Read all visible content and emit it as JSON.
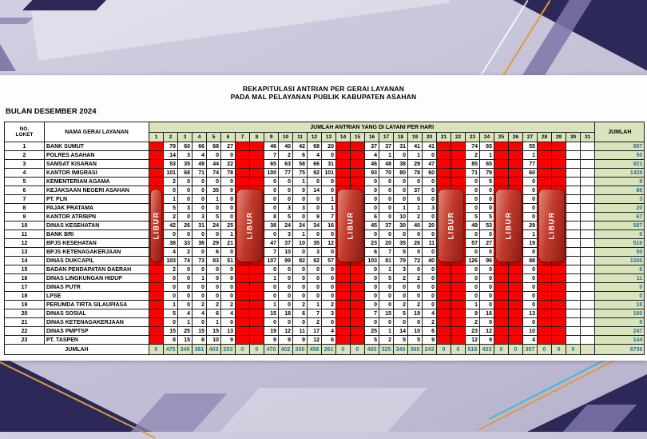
{
  "page": {
    "title_line1": "REKAPITULASI ANTRIAN PER GERAI LAYANAN",
    "title_line2": "PADA MAL PELAYANAN PUBLIK KABUPATEN ASAHAN",
    "period_label": "BULAN DESEMBER 2024"
  },
  "colors": {
    "libur_red": "#ff0000",
    "pill_red": "#c13a2c",
    "header_green": "#d8e4bc",
    "totals_text": "#2e7396",
    "wallpaper_navy": "#2c2857",
    "wallpaper_lavender": "#c6c2d8"
  },
  "table": {
    "headers": {
      "no_line1": "NO.",
      "no_line2": "LOKET",
      "name": "NAMA GERAI LAYANAN",
      "days_group": "JUMLAH ANTRIAN YANG DI LAYANI PER HARI",
      "total": "JUMLAH",
      "footer": "JUMLAH"
    },
    "day_numbers": [
      "1",
      "2",
      "3",
      "4",
      "5",
      "6",
      "7",
      "8",
      "9",
      "10",
      "11",
      "12",
      "13",
      "14",
      "15",
      "16",
      "17",
      "18",
      "19",
      "20",
      "21",
      "22",
      "23",
      "24",
      "25",
      "26",
      "27",
      "28",
      "29",
      "30",
      "31"
    ],
    "libur_days": [
      1,
      7,
      8,
      14,
      15,
      21,
      22,
      25,
      26,
      28,
      29
    ],
    "empty_days": [
      30,
      31
    ],
    "libur_label": "LIBUR",
    "libur_pills": [
      {
        "start": 1,
        "span": 1
      },
      {
        "start": 7,
        "span": 2
      },
      {
        "start": 14,
        "span": 2
      },
      {
        "start": 21,
        "span": 2
      },
      {
        "start": 25,
        "span": 2
      },
      {
        "start": 28,
        "span": 2
      }
    ],
    "rows": [
      {
        "no": "1",
        "name": "BANK SUMUT",
        "values": {
          "d2": 79,
          "d3": 60,
          "d4": 66,
          "d5": 68,
          "d6": 27,
          "d9": 46,
          "d10": 40,
          "d11": 42,
          "d12": 68,
          "d13": 20,
          "d16": 37,
          "d17": 37,
          "d18": 31,
          "d19": 41,
          "d20": 41,
          "d23": 74,
          "d24": 65,
          "d27": 55
        },
        "total": 897
      },
      {
        "no": "2",
        "name": "POLRES ASAHAN",
        "values": {
          "d2": 14,
          "d3": 3,
          "d4": 4,
          "d5": 0,
          "d6": 0,
          "d9": 7,
          "d10": 2,
          "d11": 6,
          "d12": 4,
          "d13": 0,
          "d16": 4,
          "d17": 1,
          "d18": 0,
          "d19": 1,
          "d20": 0,
          "d23": 2,
          "d24": 1,
          "d27": 1
        },
        "total": 50
      },
      {
        "no": "3",
        "name": "SAMSAT KISARAN",
        "values": {
          "d2": 53,
          "d3": 35,
          "d4": 49,
          "d5": 44,
          "d6": 22,
          "d9": 65,
          "d10": 63,
          "d11": 58,
          "d12": 66,
          "d13": 31,
          "d16": 46,
          "d17": 48,
          "d18": 38,
          "d19": 29,
          "d20": 47,
          "d23": 85,
          "d24": 65,
          "d27": 77
        },
        "total": 921
      },
      {
        "no": "4",
        "name": "KANTOR IMIGRASI",
        "values": {
          "d2": 101,
          "d3": 68,
          "d4": 71,
          "d5": 74,
          "d6": 78,
          "d9": 100,
          "d10": 77,
          "d11": 75,
          "d12": 92,
          "d13": 101,
          "d16": 93,
          "d17": 70,
          "d18": 80,
          "d19": 78,
          "d20": 60,
          "d23": 71,
          "d24": 79,
          "d27": 60
        },
        "total": 1428
      },
      {
        "no": "5",
        "name": "KEMENTERIAN AGAMA",
        "values": {
          "d2": 2,
          "d3": 0,
          "d4": 0,
          "d5": 0,
          "d6": 0,
          "d9": 0,
          "d10": 0,
          "d11": 1,
          "d12": 0,
          "d13": 0,
          "d16": 0,
          "d17": 0,
          "d18": 0,
          "d19": 0,
          "d20": 0,
          "d23": 0,
          "d24": 5,
          "d27": 0
        },
        "total": 8
      },
      {
        "no": "6",
        "name": "KEJAKSAAN NEGERI ASAHAN",
        "values": {
          "d2": 0,
          "d3": 0,
          "d4": 0,
          "d5": 35,
          "d6": 0,
          "d9": 0,
          "d10": 0,
          "d11": 0,
          "d12": 14,
          "d13": 0,
          "d16": 0,
          "d17": 0,
          "d18": 0,
          "d19": 37,
          "d20": 0,
          "d23": 0,
          "d24": 0,
          "d27": 0
        },
        "total": 86
      },
      {
        "no": "7",
        "name": "PT. PLN",
        "values": {
          "d2": 1,
          "d3": 0,
          "d4": 0,
          "d5": 1,
          "d6": 0,
          "d9": 0,
          "d10": 0,
          "d11": 0,
          "d12": 0,
          "d13": 1,
          "d16": 0,
          "d17": 0,
          "d18": 0,
          "d19": 0,
          "d20": 0,
          "d23": 0,
          "d24": 0,
          "d27": 0
        },
        "total": 3
      },
      {
        "no": "8",
        "name": "PAJAK PRATAMA",
        "values": {
          "d2": 5,
          "d3": 3,
          "d4": 0,
          "d5": 0,
          "d6": 0,
          "d9": 0,
          "d10": 3,
          "d11": 3,
          "d12": 0,
          "d13": 1,
          "d16": 0,
          "d17": 0,
          "d18": 1,
          "d19": 1,
          "d20": 3,
          "d23": 0,
          "d24": 0,
          "d27": 0
        },
        "total": 20
      },
      {
        "no": "9",
        "name": "KANTOR ATR/BPN",
        "values": {
          "d2": 2,
          "d3": 0,
          "d4": 3,
          "d5": 5,
          "d6": 0,
          "d9": 8,
          "d10": 5,
          "d11": 0,
          "d12": 9,
          "d13": 7,
          "d16": 6,
          "d17": 0,
          "d18": 10,
          "d19": 2,
          "d20": 0,
          "d23": 5,
          "d24": 5,
          "d27": 0
        },
        "total": 67
      },
      {
        "no": "10",
        "name": "DINAS KESEHATAN",
        "values": {
          "d2": 42,
          "d3": 26,
          "d4": 31,
          "d5": 24,
          "d6": 25,
          "d9": 38,
          "d10": 24,
          "d11": 24,
          "d12": 34,
          "d13": 16,
          "d16": 45,
          "d17": 37,
          "d18": 30,
          "d19": 40,
          "d20": 20,
          "d23": 49,
          "d24": 53,
          "d27": 29
        },
        "total": 587
      },
      {
        "no": "11",
        "name": "BANK BRI",
        "values": {
          "d2": 0,
          "d3": 0,
          "d4": 0,
          "d5": 0,
          "d6": 1,
          "d9": 0,
          "d10": 3,
          "d11": 1,
          "d12": 0,
          "d13": 0,
          "d16": 0,
          "d17": 0,
          "d18": 0,
          "d19": 0,
          "d20": 0,
          "d23": 0,
          "d24": 0,
          "d27": 1
        },
        "total": 6
      },
      {
        "no": "12",
        "name": "BPJS KESEHATAN",
        "values": {
          "d2": 38,
          "d3": 33,
          "d4": 36,
          "d5": 29,
          "d6": 21,
          "d9": 47,
          "d10": 37,
          "d11": 10,
          "d12": 35,
          "d13": 12,
          "d16": 23,
          "d17": 20,
          "d18": 35,
          "d19": 26,
          "d20": 11,
          "d23": 57,
          "d24": 27,
          "d27": 19
        },
        "total": 516
      },
      {
        "no": "13",
        "name": "BPJS KETENAGAKERJAAN",
        "values": {
          "d2": 4,
          "d3": 2,
          "d4": 0,
          "d5": 6,
          "d6": 0,
          "d9": 7,
          "d10": 10,
          "d11": 0,
          "d12": 3,
          "d13": 0,
          "d16": 6,
          "d17": 7,
          "d18": 5,
          "d19": 0,
          "d20": 0,
          "d23": 0,
          "d24": 0,
          "d27": 0
        },
        "total": 50
      },
      {
        "no": "14",
        "name": "DINAS DUKCAPIL",
        "values": {
          "d2": 103,
          "d3": 74,
          "d4": 73,
          "d5": 83,
          "d6": 51,
          "d9": 107,
          "d10": 99,
          "d11": 82,
          "d12": 92,
          "d13": 57,
          "d16": 103,
          "d17": 81,
          "d18": 79,
          "d19": 72,
          "d20": 40,
          "d23": 126,
          "d24": 96,
          "d27": 88
        },
        "total": 1506
      },
      {
        "no": "15",
        "name": "BADAN PENDAPATAN DAERAH",
        "values": {
          "d2": 2,
          "d3": 0,
          "d4": 0,
          "d5": 0,
          "d6": 0,
          "d9": 0,
          "d10": 0,
          "d11": 0,
          "d12": 0,
          "d13": 0,
          "d16": 0,
          "d17": 1,
          "d18": 3,
          "d19": 0,
          "d20": 0,
          "d23": 0,
          "d24": 0,
          "d27": 0
        },
        "total": 6
      },
      {
        "no": "16",
        "name": "DINAS LINGKUNGAN HIDUP",
        "values": {
          "d2": 0,
          "d3": 0,
          "d4": 1,
          "d5": 0,
          "d6": 0,
          "d9": 1,
          "d10": 0,
          "d11": 0,
          "d12": 0,
          "d13": 0,
          "d16": 0,
          "d17": 5,
          "d18": 2,
          "d19": 2,
          "d20": 0,
          "d23": 0,
          "d24": 0,
          "d27": 0
        },
        "total": 11
      },
      {
        "no": "17",
        "name": "DINAS PUTR",
        "values": {
          "d2": 0,
          "d3": 0,
          "d4": 0,
          "d5": 0,
          "d6": 0,
          "d9": 0,
          "d10": 0,
          "d11": 0,
          "d12": 0,
          "d13": 0,
          "d16": 0,
          "d17": 0,
          "d18": 0,
          "d19": 0,
          "d20": 0,
          "d23": 0,
          "d24": 0,
          "d27": 0
        },
        "total": 0
      },
      {
        "no": "18",
        "name": "LPSE",
        "values": {
          "d2": 0,
          "d3": 0,
          "d4": 0,
          "d5": 0,
          "d6": 0,
          "d9": 0,
          "d10": 0,
          "d11": 0,
          "d12": 0,
          "d13": 0,
          "d16": 0,
          "d17": 0,
          "d18": 0,
          "d19": 0,
          "d20": 0,
          "d23": 0,
          "d24": 0,
          "d27": 0
        },
        "total": 0
      },
      {
        "no": "19",
        "name": "PERUMDA TIRTA SILAUPIASA",
        "values": {
          "d2": 1,
          "d3": 0,
          "d4": 2,
          "d5": 2,
          "d6": 2,
          "d9": 1,
          "d10": 0,
          "d11": 2,
          "d12": 1,
          "d13": 2,
          "d16": 0,
          "d17": 0,
          "d18": 2,
          "d19": 2,
          "d20": 0,
          "d23": 1,
          "d24": 0,
          "d27": 0
        },
        "total": 18
      },
      {
        "no": "20",
        "name": "DINAS SOSIAL",
        "values": {
          "d2": 5,
          "d3": 4,
          "d4": 4,
          "d5": 6,
          "d6": 4,
          "d9": 15,
          "d10": 18,
          "d11": 6,
          "d12": 7,
          "d13": 3,
          "d16": 7,
          "d17": 15,
          "d18": 5,
          "d19": 19,
          "d20": 4,
          "d23": 9,
          "d24": 16,
          "d27": 13
        },
        "total": 160
      },
      {
        "no": "21",
        "name": "DINAS KETENAGAKERJAAN",
        "values": {
          "d2": 0,
          "d3": 1,
          "d4": 0,
          "d5": 1,
          "d6": 0,
          "d9": 0,
          "d10": 0,
          "d11": 0,
          "d12": 2,
          "d13": 0,
          "d16": 0,
          "d17": 0,
          "d18": 0,
          "d19": 0,
          "d20": 2,
          "d23": 2,
          "d24": 0,
          "d27": 0
        },
        "total": 8
      },
      {
        "no": "22",
        "name": "DINAS PMPTSP",
        "values": {
          "d2": 15,
          "d3": 25,
          "d4": 15,
          "d5": 15,
          "d6": 13,
          "d9": 19,
          "d10": 12,
          "d11": 11,
          "d12": 17,
          "d13": 4,
          "d16": 25,
          "d17": 1,
          "d18": 14,
          "d19": 10,
          "d20": 6,
          "d23": 23,
          "d24": 12,
          "d27": 10
        },
        "total": 247
      },
      {
        "no": "23",
        "name": "PT. TASPEN",
        "values": {
          "d2": 8,
          "d3": 15,
          "d4": 6,
          "d5": 10,
          "d6": 9,
          "d9": 9,
          "d10": 9,
          "d11": 9,
          "d12": 12,
          "d13": 6,
          "d16": 5,
          "d17": 2,
          "d18": 5,
          "d19": 5,
          "d20": 9,
          "d23": 12,
          "d24": 9,
          "d27": 4
        },
        "total": 144
      }
    ],
    "totals": {
      "d1": 0,
      "d2": 475,
      "d3": 349,
      "d4": 361,
      "d5": 403,
      "d6": 253,
      "d7": 0,
      "d8": 0,
      "d9": 470,
      "d10": 402,
      "d11": 330,
      "d12": 456,
      "d13": 261,
      "d14": 0,
      "d15": 0,
      "d16": 400,
      "d17": 325,
      "d18": 340,
      "d19": 365,
      "d20": 243,
      "d21": 0,
      "d22": 0,
      "d23": 516,
      "d24": 433,
      "d25": 0,
      "d26": 0,
      "d27": 357,
      "d28": 0,
      "d29": 0,
      "d30": 0,
      "grand": 6739
    }
  }
}
